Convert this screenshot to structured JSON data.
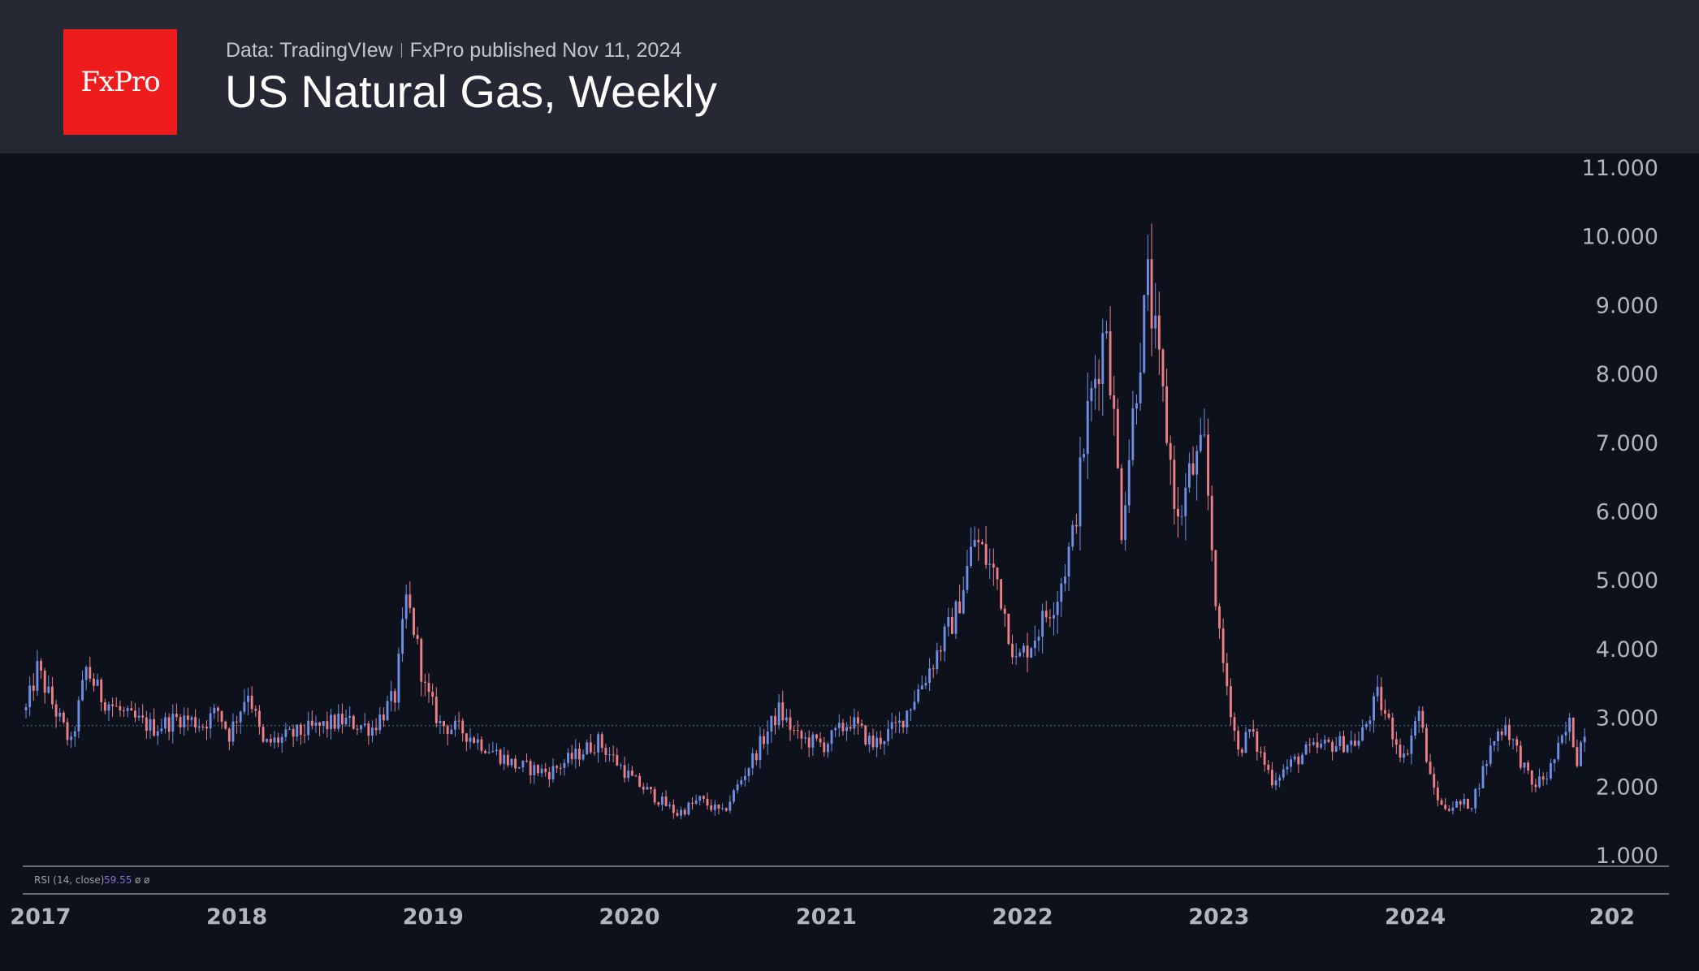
{
  "header": {
    "logo_text": "FxPro",
    "source": "Data: TradingVIew",
    "published": "FxPro published Nov 11, 2024",
    "title": "US Natural Gas, Weekly"
  },
  "indicator": {
    "label": "RSI (14, close)",
    "value": "59.55",
    "extra": "ø  ø"
  },
  "colors": {
    "up": "#6f8fe6",
    "down": "#ef7f86",
    "background": "#0d111b",
    "header": "#262833",
    "axis_text": "#b2b5be",
    "price_line": "#4a7a8c"
  },
  "chart_data": {
    "type": "candlestick",
    "title": "US Natural Gas, Weekly",
    "x_tick_labels": [
      "2017",
      "2018",
      "2019",
      "2020",
      "2021",
      "2022",
      "2023",
      "2024",
      "202"
    ],
    "y_tick_labels": [
      "11.000",
      "10.000",
      "9.000",
      "8.000",
      "7.000",
      "6.000",
      "5.000",
      "4.000",
      "3.000",
      "2.000",
      "1.000"
    ],
    "ylim": [
      1.0,
      11.0
    ],
    "current_price_line": 2.88,
    "x_range": [
      "2016-12-05",
      "2025-03-01"
    ],
    "anchor_closes": [
      [
        "2016-12-05",
        3.1
      ],
      [
        "2016-12-26",
        3.7
      ],
      [
        "2017-01-23",
        3.2
      ],
      [
        "2017-02-27",
        2.6
      ],
      [
        "2017-03-27",
        3.7
      ],
      [
        "2017-04-24",
        3.3
      ],
      [
        "2017-06-12",
        3.0
      ],
      [
        "2017-07-31",
        2.85
      ],
      [
        "2017-09-18",
        3.0
      ],
      [
        "2017-10-30",
        2.9
      ],
      [
        "2017-11-27",
        3.1
      ],
      [
        "2017-12-18",
        2.75
      ],
      [
        "2018-01-22",
        3.4
      ],
      [
        "2018-02-19",
        2.6
      ],
      [
        "2018-05-07",
        2.8
      ],
      [
        "2018-07-16",
        2.95
      ],
      [
        "2018-09-10",
        2.85
      ],
      [
        "2018-10-22",
        3.3
      ],
      [
        "2018-11-12",
        4.7
      ],
      [
        "2018-11-26",
        4.3
      ],
      [
        "2018-12-17",
        3.4
      ],
      [
        "2019-01-14",
        2.9
      ],
      [
        "2019-02-25",
        2.8
      ],
      [
        "2019-06-03",
        2.3
      ],
      [
        "2019-08-05",
        2.2
      ],
      [
        "2019-10-14",
        2.55
      ],
      [
        "2019-11-04",
        2.65
      ],
      [
        "2020-01-06",
        2.1
      ],
      [
        "2020-03-30",
        1.6
      ],
      [
        "2020-05-11",
        1.8
      ],
      [
        "2020-06-22",
        1.6
      ],
      [
        "2020-08-03",
        2.2
      ],
      [
        "2020-10-05",
        3.1
      ],
      [
        "2020-11-09",
        2.7
      ],
      [
        "2020-12-28",
        2.6
      ],
      [
        "2021-02-15",
        2.95
      ],
      [
        "2021-03-29",
        2.6
      ],
      [
        "2021-05-17",
        2.9
      ],
      [
        "2021-07-05",
        3.6
      ],
      [
        "2021-08-30",
        4.5
      ],
      [
        "2021-10-04",
        5.6
      ],
      [
        "2021-11-15",
        5.0
      ],
      [
        "2021-12-20",
        3.8
      ],
      [
        "2022-01-17",
        4.1
      ],
      [
        "2022-03-07",
        4.8
      ],
      [
        "2022-04-04",
        5.6
      ],
      [
        "2022-05-02",
        7.4
      ],
      [
        "2022-06-06",
        8.8
      ],
      [
        "2022-07-04",
        5.8
      ],
      [
        "2022-08-01",
        7.9
      ],
      [
        "2022-08-22",
        9.3
      ],
      [
        "2022-09-19",
        7.6
      ],
      [
        "2022-10-17",
        5.8
      ],
      [
        "2022-11-07",
        6.5
      ],
      [
        "2022-12-05",
        6.9
      ],
      [
        "2023-01-02",
        4.1
      ],
      [
        "2023-02-06",
        2.5
      ],
      [
        "2023-02-27",
        2.8
      ],
      [
        "2023-04-10",
        2.1
      ],
      [
        "2023-06-12",
        2.5
      ],
      [
        "2023-07-24",
        2.6
      ],
      [
        "2023-09-18",
        2.65
      ],
      [
        "2023-10-23",
        3.3
      ],
      [
        "2023-12-11",
        2.4
      ],
      [
        "2024-01-08",
        3.1
      ],
      [
        "2024-01-29",
        2.1
      ],
      [
        "2024-02-19",
        1.7
      ],
      [
        "2024-04-15",
        1.75
      ],
      [
        "2024-05-27",
        2.7
      ],
      [
        "2024-06-17",
        2.9
      ],
      [
        "2024-08-05",
        2.0
      ],
      [
        "2024-09-02",
        2.15
      ],
      [
        "2024-10-14",
        2.9
      ],
      [
        "2024-10-28",
        2.4
      ],
      [
        "2024-11-11",
        2.85
      ]
    ]
  }
}
